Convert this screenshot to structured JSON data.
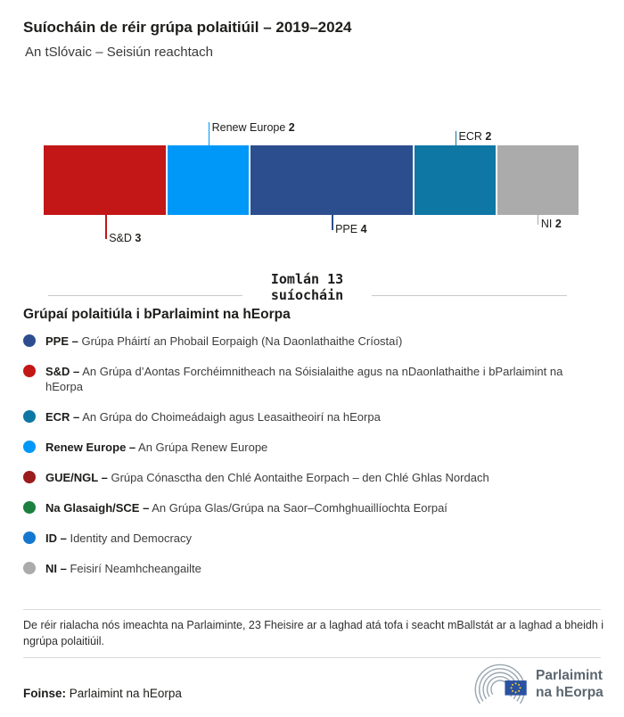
{
  "header": {
    "title": "Suíocháin de réir grúpa polaitiúil – 2019–2024",
    "subtitle": "An tSlóvaic – Seisiún reachtach"
  },
  "chart_data": {
    "type": "bar",
    "variant": "stacked-horizontal",
    "title": "Suíocháin de réir grúpa polaitiúil – 2019–2024",
    "subtitle": "An tSlóvaic – Seisiún reachtach",
    "total_seats": 13,
    "total_label_line1": "Iomlán 13",
    "total_label_line2": "suíocháin",
    "segments": [
      {
        "group": "S&D",
        "seats": 3,
        "color": "#c21617",
        "callout": {
          "side": "below",
          "line": 27
        }
      },
      {
        "group": "Renew Europe",
        "seats": 2,
        "color": "#0098f8",
        "callout": {
          "side": "above",
          "line": 26
        }
      },
      {
        "group": "PPE",
        "seats": 4,
        "color": "#2c4e8f",
        "callout": {
          "side": "below",
          "line": 17
        }
      },
      {
        "group": "ECR",
        "seats": 2,
        "color": "#0e77a4",
        "callout": {
          "side": "above",
          "line": 16
        }
      },
      {
        "group": "NI",
        "seats": 2,
        "color": "#ababab",
        "callout": {
          "side": "below",
          "line": 11
        }
      }
    ]
  },
  "legend": {
    "heading": "Grúpaí polaitiúla i bParlaimint na hEorpa",
    "items": [
      {
        "abbr": "PPE –",
        "desc": "Grúpa Pháirtí an Phobail Eorpaigh (Na Daonlathaithe Críostaí)",
        "color": "#2c4e8f"
      },
      {
        "abbr": "S&D –",
        "desc": "An Grúpa d’Aontas Forchéimnitheach na Sóisialaithe agus na nDaonlathaithe i bParlaimint na hEorpa",
        "color": "#c21617"
      },
      {
        "abbr": "ECR –",
        "desc": "An Grúpa do Choimeádaigh agus Leasaitheoirí na hEorpa",
        "color": "#0e77a4"
      },
      {
        "abbr": "Renew Europe –",
        "desc": "An Grúpa Renew Europe",
        "color": "#0098f8"
      },
      {
        "abbr": "GUE/NGL –",
        "desc": "Grúpa Cónasctha den Chlé Aontaithe Eorpach – den Chlé Ghlas Nordach",
        "color": "#9c1b1c"
      },
      {
        "abbr": "Na Glasaigh/SCE –",
        "desc": "An Grúpa Glas/Grúpa na Saor–Comhghuaillíochta Eorpaí",
        "color": "#1c8040"
      },
      {
        "abbr": "ID –",
        "desc": "Identity and Democracy",
        "color": "#1577d0"
      },
      {
        "abbr": "NI –",
        "desc": "Feisirí Neamhcheangailte",
        "color": "#ababab"
      }
    ]
  },
  "footer": {
    "note": "De réir rialacha nós imeachta na Parlaiminte, 23 Fheisire ar a laghad atá tofa i seacht mBallstát ar a laghad a bheidh i ngrúpa polaitiúil.",
    "source_label": "Foinse:",
    "source_value": "Parlaimint na hEorpa",
    "logo": {
      "line1": "Parlaimint",
      "line2": "na hEorpa",
      "arc_color": "#9aa7b2",
      "flag_color": "#2b52a0",
      "star_color": "#f8d12e",
      "text_color": "#5b6670"
    }
  }
}
